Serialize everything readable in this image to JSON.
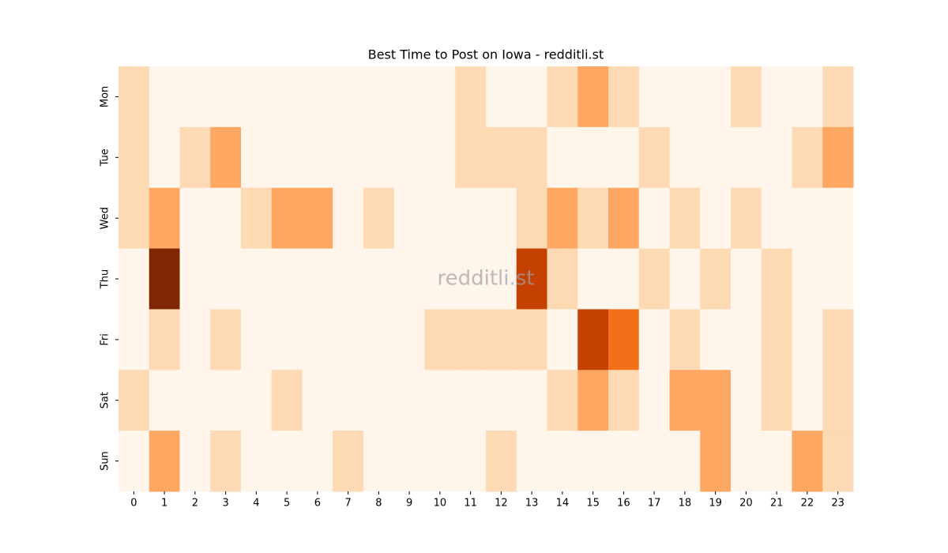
{
  "chart_data": {
    "type": "heatmap",
    "title": "Best Time to Post on Iowa - redditli.st",
    "watermark": "redditli.st",
    "x": [
      0,
      1,
      2,
      3,
      4,
      5,
      6,
      7,
      8,
      9,
      10,
      11,
      12,
      13,
      14,
      15,
      16,
      17,
      18,
      19,
      20,
      21,
      22,
      23
    ],
    "y": [
      "Mon",
      "Tue",
      "Wed",
      "Thu",
      "Fri",
      "Sat",
      "Sun"
    ],
    "z": [
      [
        1,
        0,
        0,
        0,
        0,
        0,
        0,
        0,
        0,
        0,
        0,
        1,
        0,
        0,
        1,
        2,
        1,
        0,
        0,
        0,
        1,
        0,
        0,
        1
      ],
      [
        1,
        0,
        1,
        2,
        0,
        0,
        0,
        0,
        0,
        0,
        0,
        1,
        1,
        1,
        0,
        0,
        0,
        1,
        0,
        0,
        0,
        0,
        1,
        2
      ],
      [
        1,
        2,
        0,
        0,
        1,
        2,
        2,
        0,
        1,
        0,
        0,
        0,
        0,
        1,
        2,
        1,
        2,
        0,
        1,
        0,
        1,
        0,
        0,
        0
      ],
      [
        0,
        5,
        0,
        0,
        0,
        0,
        0,
        0,
        0,
        0,
        0,
        0,
        0,
        4,
        1,
        0,
        0,
        1,
        0,
        1,
        0,
        1,
        0,
        0
      ],
      [
        0,
        1,
        0,
        1,
        0,
        0,
        0,
        0,
        0,
        0,
        1,
        1,
        1,
        1,
        0,
        4,
        3,
        0,
        1,
        0,
        0,
        1,
        0,
        1
      ],
      [
        1,
        0,
        0,
        0,
        0,
        1,
        0,
        0,
        0,
        0,
        0,
        0,
        0,
        0,
        1,
        2,
        1,
        0,
        2,
        2,
        0,
        1,
        0,
        1
      ],
      [
        0,
        2,
        0,
        1,
        0,
        0,
        0,
        1,
        0,
        0,
        0,
        0,
        1,
        0,
        0,
        0,
        0,
        0,
        0,
        2,
        0,
        0,
        2,
        1
      ]
    ],
    "colormap": [
      "#fff5eb",
      "#fee6ce",
      "#fdd0a2",
      "#fdae6b",
      "#fd8d3c",
      "#f16913",
      "#d94801",
      "#a63603",
      "#7f2704"
    ]
  }
}
